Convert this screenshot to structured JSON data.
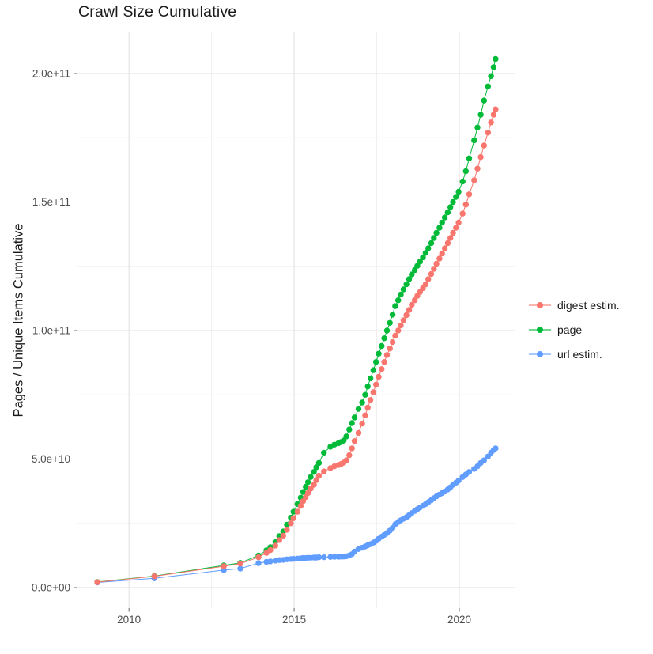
{
  "title": "Crawl Size Cumulative",
  "axes": {
    "y_title": "Pages / Unique Items Cumulative",
    "x_tick_labels": [
      "2010",
      "2015",
      "2020"
    ],
    "y_tick_labels": [
      "0.0e+00",
      "5.0e+10",
      "1.0e+11",
      "1.5e+11",
      "2.0e+11"
    ]
  },
  "legend": {
    "items": [
      {
        "label": "digest estim.",
        "color": "#F8766D"
      },
      {
        "label": "page",
        "color": "#00BA38"
      },
      {
        "label": "url estim.",
        "color": "#619CFF"
      }
    ]
  },
  "colors": {
    "digest": "#F8766D",
    "page": "#00BA38",
    "url": "#619CFF",
    "grid_major": "#e2e2e2",
    "grid_minor": "#f0f0f0",
    "tick_text": "#4d4d4d",
    "tick_mark": "#666666"
  },
  "chart_data": {
    "type": "line",
    "title": "Crawl Size Cumulative",
    "xlabel": "",
    "ylabel": "Pages / Unique Items Cumulative",
    "legend_position": "right",
    "grid": true,
    "xlim": [
      2008.44,
      2021.7
    ],
    "ylim": [
      -8000000000.0,
      216000000000.0
    ],
    "x_major_ticks": [
      2010,
      2015,
      2020
    ],
    "x_minor_gridlines": [
      2012.5,
      2017.5
    ],
    "y_major_ticks": [
      0,
      50000000000.0,
      100000000000.0,
      150000000000.0,
      200000000000.0
    ],
    "y_minor_gridlines": [
      25000000000.0,
      75000000000.0,
      125000000000.0,
      175000000000.0
    ],
    "x": [
      2009.04,
      2010.77,
      2012.87,
      2013.37,
      2013.92,
      2014.16,
      2014.28,
      2014.43,
      2014.55,
      2014.67,
      2014.78,
      2014.9,
      2014.98,
      2015.1,
      2015.2,
      2015.27,
      2015.35,
      2015.42,
      2015.5,
      2015.6,
      2015.67,
      2015.75,
      2015.9,
      2016.1,
      2016.22,
      2016.34,
      2016.42,
      2016.5,
      2016.58,
      2016.67,
      2016.75,
      2016.83,
      2016.95,
      2017.06,
      2017.15,
      2017.23,
      2017.31,
      2017.4,
      2017.48,
      2017.56,
      2017.65,
      2017.73,
      2017.81,
      2017.9,
      2017.98,
      2018.06,
      2018.15,
      2018.23,
      2018.31,
      2018.4,
      2018.48,
      2018.56,
      2018.65,
      2018.73,
      2018.81,
      2018.9,
      2018.98,
      2019.06,
      2019.15,
      2019.23,
      2019.31,
      2019.4,
      2019.48,
      2019.56,
      2019.65,
      2019.73,
      2019.81,
      2019.9,
      2019.98,
      2020.1,
      2020.2,
      2020.3,
      2020.45,
      2020.55,
      2020.65,
      2020.75,
      2020.87,
      2020.96,
      2021.04,
      2021.1
    ],
    "series": [
      {
        "name": "digest estim.",
        "color": "#F8766D",
        "values": [
          2100000000.0,
          4400000000.0,
          8300000000.0,
          9300000000.0,
          11800000000.0,
          13500000000.0,
          14600000000.0,
          16300000000.0,
          18500000000.0,
          20200000000.0,
          22500000000.0,
          25000000000.0,
          27000000000.0,
          29500000000.0,
          31800000000.0,
          33600000000.0,
          35200000000.0,
          36800000000.0,
          38500000000.0,
          40000000000.0,
          41800000000.0,
          43500000000.0,
          45200000000.0,
          46500000000.0,
          47200000000.0,
          47700000000.0,
          48100000000.0,
          48600000000.0,
          49500000000.0,
          51500000000.0,
          54200000000.0,
          57000000000.0,
          60200000000.0,
          63800000000.0,
          67000000000.0,
          70000000000.0,
          73000000000.0,
          76000000000.0,
          79000000000.0,
          82000000000.0,
          85000000000.0,
          87800000000.0,
          90500000000.0,
          93000000000.0,
          95500000000.0,
          98000000000.0,
          100000000000.0,
          102000000000.0,
          104000000000.0,
          106000000000.0,
          108000000000.0,
          110000000000.0,
          111800000000.0,
          113500000000.0,
          115000000000.0,
          116500000000.0,
          118000000000.0,
          120000000000.0,
          122000000000.0,
          124000000000.0,
          126000000000.0,
          128000000000.0,
          130000000000.0,
          132000000000.0,
          134000000000.0,
          136000000000.0,
          138000000000.0,
          140000000000.0,
          142000000000.0,
          145500000000.0,
          149000000000.0,
          153000000000.0,
          158500000000.0,
          163000000000.0,
          167500000000.0,
          172000000000.0,
          177000000000.0,
          181000000000.0,
          184000000000.0,
          186100000000.0
        ]
      },
      {
        "name": "page",
        "color": "#00BA38",
        "values": [
          2200000000.0,
          4500000000.0,
          8600000000.0,
          9600000000.0,
          12500000000.0,
          14500000000.0,
          15700000000.0,
          17800000000.0,
          20000000000.0,
          21800000000.0,
          24500000000.0,
          27200000000.0,
          29500000000.0,
          32500000000.0,
          35000000000.0,
          37200000000.0,
          39200000000.0,
          41000000000.0,
          43000000000.0,
          45000000000.0,
          46800000000.0,
          48500000000.0,
          52500000000.0,
          54800000000.0,
          55600000000.0,
          56200000000.0,
          56600000000.0,
          57200000000.0,
          58800000000.0,
          61500000000.0,
          64000000000.0,
          66200000000.0,
          69500000000.0,
          72000000000.0,
          75000000000.0,
          78200000000.0,
          81400000000.0,
          84600000000.0,
          87800000000.0,
          91000000000.0,
          94000000000.0,
          97000000000.0,
          100000000000.0,
          103000000000.0,
          106200000000.0,
          109500000000.0,
          111800000000.0,
          114000000000.0,
          116000000000.0,
          118000000000.0,
          120000000000.0,
          121800000000.0,
          123500000000.0,
          125200000000.0,
          126800000000.0,
          128500000000.0,
          130200000000.0,
          132000000000.0,
          134000000000.0,
          136000000000.0,
          138000000000.0,
          140000000000.0,
          142000000000.0,
          144000000000.0,
          146000000000.0,
          148000000000.0,
          150000000000.0,
          152000000000.0,
          154000000000.0,
          158000000000.0,
          162000000000.0,
          167000000000.0,
          174000000000.0,
          179000000000.0,
          184000000000.0,
          189500000000.0,
          195000000000.0,
          199000000000.0,
          202500000000.0,
          205700000000.0
        ]
      },
      {
        "name": "url estim.",
        "color": "#619CFF",
        "values": [
          2000000000.0,
          3600000000.0,
          6800000000.0,
          7400000000.0,
          9500000000.0,
          10000000000.0,
          10200000000.0,
          10500000000.0,
          10700000000.0,
          10800000000.0,
          11000000000.0,
          11100000000.0,
          11200000000.0,
          11300000000.0,
          11400000000.0,
          11500000000.0,
          11500000000.0,
          11600000000.0,
          11600000000.0,
          11700000000.0,
          11700000000.0,
          11800000000.0,
          11800000000.0,
          11900000000.0,
          12000000000.0,
          12000000000.0,
          12100000000.0,
          12100000000.0,
          12200000000.0,
          12500000000.0,
          13000000000.0,
          14000000000.0,
          15000000000.0,
          15500000000.0,
          16000000000.0,
          16500000000.0,
          16900000000.0,
          17500000000.0,
          18200000000.0,
          19000000000.0,
          19800000000.0,
          20500000000.0,
          21200000000.0,
          22200000000.0,
          23200000000.0,
          24600000000.0,
          25500000000.0,
          26200000000.0,
          26800000000.0,
          27400000000.0,
          28200000000.0,
          29000000000.0,
          29800000000.0,
          30500000000.0,
          31200000000.0,
          31800000000.0,
          32500000000.0,
          33200000000.0,
          34000000000.0,
          34800000000.0,
          35500000000.0,
          36200000000.0,
          36800000000.0,
          37400000000.0,
          38200000000.0,
          39000000000.0,
          40000000000.0,
          40800000000.0,
          41600000000.0,
          43000000000.0,
          44000000000.0,
          45000000000.0,
          46200000000.0,
          47200000000.0,
          48500000000.0,
          49500000000.0,
          51000000000.0,
          52500000000.0,
          53500000000.0,
          54200000000.0
        ]
      }
    ]
  }
}
